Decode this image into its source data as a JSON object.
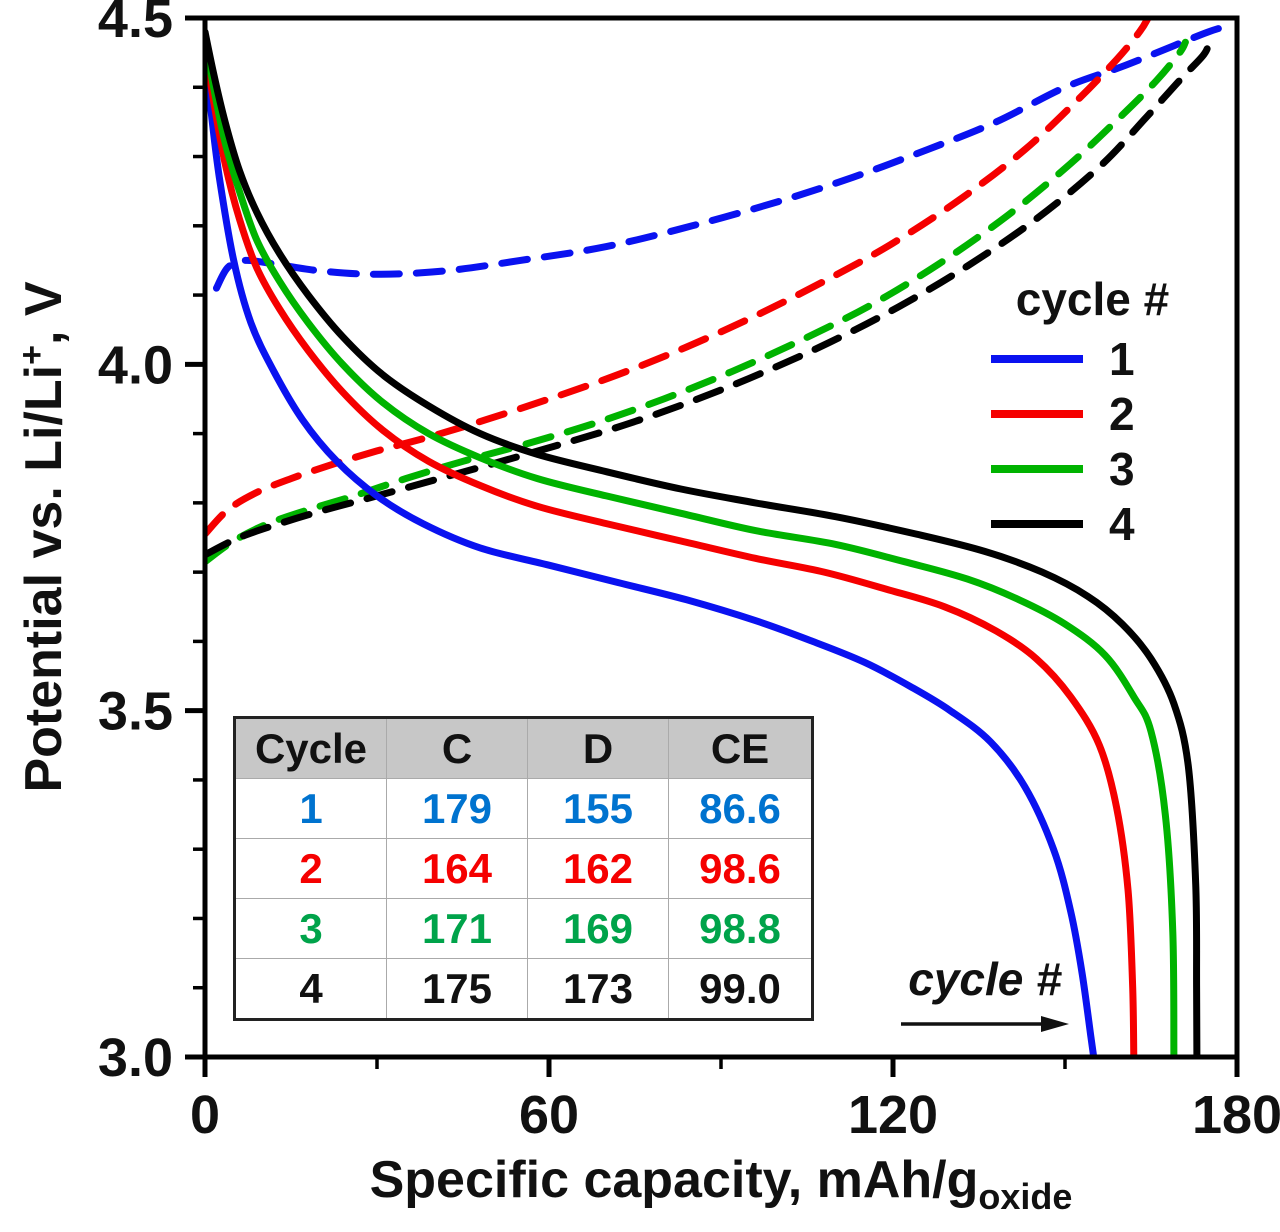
{
  "figure": {
    "background": "#ffffff"
  },
  "axis": {
    "x_label_main": "Specific capacity, mAh/g",
    "x_label_sub": "oxide",
    "y_label_main": "Potential vs. Li/Li",
    "y_label_sup": "+",
    "y_label_suffix": ", V"
  },
  "legend": {
    "title": "cycle #",
    "items": [
      {
        "label": "1",
        "color": "#0a12f0"
      },
      {
        "label": "2",
        "color": "#f50000"
      },
      {
        "label": "3",
        "color": "#00b300"
      },
      {
        "label": "4",
        "color": "#000000"
      }
    ]
  },
  "annotation": {
    "text": "cycle #"
  },
  "table": {
    "headers": [
      "Cycle",
      "C",
      "D",
      "CE"
    ],
    "rows": [
      {
        "cycle": "1",
        "c": "179",
        "d": "155",
        "ce": "86.6",
        "color": "#0073cf"
      },
      {
        "cycle": "2",
        "c": "164",
        "d": "162",
        "ce": "98.6",
        "color": "#f50000"
      },
      {
        "cycle": "3",
        "c": "171",
        "d": "169",
        "ce": "98.8",
        "color": "#00a34a"
      },
      {
        "cycle": "4",
        "c": "175",
        "d": "173",
        "ce": "99.0",
        "color": "#111111"
      }
    ]
  },
  "chart_data": {
    "type": "line",
    "title": "",
    "xlabel": "Specific capacity, mAh/g_oxide",
    "ylabel": "Potential vs. Li/Li+, V",
    "xlim": [
      0,
      180
    ],
    "ylim": [
      3.0,
      4.5
    ],
    "x_ticks": [
      0,
      60,
      120,
      180
    ],
    "x_minor_ticks": [
      30,
      90,
      150
    ],
    "y_ticks": [
      3.0,
      3.5,
      4.0,
      4.5
    ],
    "y_tick_labels": [
      "3.0",
      "3.5",
      "4.0",
      "4.5"
    ],
    "y_minor_step": 0.1,
    "legend_position": "upper right inside",
    "grid": false,
    "series": [
      {
        "name": "cycle 1 charge",
        "cycle": 1,
        "segment": "charge",
        "line": "dashed",
        "color": "#0a12f0",
        "points": [
          [
            2,
            4.11
          ],
          [
            4,
            4.14
          ],
          [
            7,
            4.15
          ],
          [
            12,
            4.145
          ],
          [
            20,
            4.135
          ],
          [
            30,
            4.13
          ],
          [
            42,
            4.135
          ],
          [
            55,
            4.15
          ],
          [
            70,
            4.17
          ],
          [
            85,
            4.2
          ],
          [
            100,
            4.235
          ],
          [
            113,
            4.27
          ],
          [
            126,
            4.31
          ],
          [
            138,
            4.35
          ],
          [
            150,
            4.4
          ],
          [
            160,
            4.43
          ],
          [
            169,
            4.46
          ],
          [
            175,
            4.48
          ],
          [
            179,
            4.49
          ]
        ]
      },
      {
        "name": "cycle 2 charge",
        "cycle": 2,
        "segment": "charge",
        "line": "dashed",
        "color": "#f50000",
        "points": [
          [
            0,
            3.755
          ],
          [
            4,
            3.79
          ],
          [
            9,
            3.815
          ],
          [
            15,
            3.835
          ],
          [
            22,
            3.855
          ],
          [
            30,
            3.875
          ],
          [
            39,
            3.895
          ],
          [
            49,
            3.92
          ],
          [
            60,
            3.95
          ],
          [
            72,
            3.985
          ],
          [
            84,
            4.025
          ],
          [
            96,
            4.07
          ],
          [
            108,
            4.12
          ],
          [
            120,
            4.175
          ],
          [
            132,
            4.24
          ],
          [
            143,
            4.31
          ],
          [
            152,
            4.38
          ],
          [
            159,
            4.44
          ],
          [
            163,
            4.48
          ],
          [
            164.5,
            4.5
          ]
        ]
      },
      {
        "name": "cycle 3 charge",
        "cycle": 3,
        "segment": "charge",
        "line": "dashed",
        "color": "#00b300",
        "points": [
          [
            0,
            3.715
          ],
          [
            5,
            3.745
          ],
          [
            11,
            3.77
          ],
          [
            18,
            3.79
          ],
          [
            26,
            3.81
          ],
          [
            35,
            3.835
          ],
          [
            45,
            3.86
          ],
          [
            56,
            3.885
          ],
          [
            68,
            3.915
          ],
          [
            80,
            3.95
          ],
          [
            92,
            3.99
          ],
          [
            104,
            4.035
          ],
          [
            116,
            4.085
          ],
          [
            128,
            4.145
          ],
          [
            140,
            4.215
          ],
          [
            151,
            4.29
          ],
          [
            160,
            4.36
          ],
          [
            166,
            4.41
          ],
          [
            170,
            4.45
          ],
          [
            171,
            4.465
          ]
        ]
      },
      {
        "name": "cycle 4 charge",
        "cycle": 4,
        "segment": "charge",
        "line": "dashed",
        "color": "#000000",
        "points": [
          [
            0,
            3.725
          ],
          [
            6,
            3.75
          ],
          [
            13,
            3.77
          ],
          [
            21,
            3.79
          ],
          [
            30,
            3.81
          ],
          [
            40,
            3.833
          ],
          [
            50,
            3.856
          ],
          [
            61,
            3.882
          ],
          [
            73,
            3.912
          ],
          [
            85,
            3.947
          ],
          [
            97,
            3.987
          ],
          [
            109,
            4.032
          ],
          [
            121,
            4.083
          ],
          [
            133,
            4.142
          ],
          [
            145,
            4.21
          ],
          [
            156,
            4.285
          ],
          [
            164,
            4.355
          ],
          [
            170,
            4.41
          ],
          [
            174,
            4.445
          ],
          [
            175,
            4.46
          ]
        ]
      },
      {
        "name": "cycle 1 discharge",
        "cycle": 1,
        "segment": "discharge",
        "line": "solid",
        "color": "#0a12f0",
        "points": [
          [
            0,
            4.45
          ],
          [
            1,
            4.37
          ],
          [
            2.5,
            4.27
          ],
          [
            5,
            4.15
          ],
          [
            8,
            4.06
          ],
          [
            12,
            3.99
          ],
          [
            17,
            3.92
          ],
          [
            23,
            3.86
          ],
          [
            30,
            3.81
          ],
          [
            38,
            3.77
          ],
          [
            48,
            3.735
          ],
          [
            60,
            3.71
          ],
          [
            72,
            3.685
          ],
          [
            84,
            3.66
          ],
          [
            96,
            3.63
          ],
          [
            106,
            3.6
          ],
          [
            115,
            3.57
          ],
          [
            123,
            3.535
          ],
          [
            130,
            3.5
          ],
          [
            137,
            3.455
          ],
          [
            143,
            3.39
          ],
          [
            148,
            3.3
          ],
          [
            151,
            3.21
          ],
          [
            153,
            3.12
          ],
          [
            154.5,
            3.03
          ],
          [
            155,
            3.0
          ]
        ]
      },
      {
        "name": "cycle 2 discharge",
        "cycle": 2,
        "segment": "discharge",
        "line": "solid",
        "color": "#f50000",
        "points": [
          [
            0,
            4.46
          ],
          [
            1.5,
            4.38
          ],
          [
            3.5,
            4.29
          ],
          [
            6,
            4.21
          ],
          [
            9,
            4.14
          ],
          [
            13,
            4.08
          ],
          [
            18,
            4.02
          ],
          [
            24,
            3.96
          ],
          [
            31,
            3.905
          ],
          [
            39,
            3.86
          ],
          [
            48,
            3.825
          ],
          [
            58,
            3.795
          ],
          [
            70,
            3.77
          ],
          [
            83,
            3.745
          ],
          [
            96,
            3.72
          ],
          [
            108,
            3.7
          ],
          [
            119,
            3.675
          ],
          [
            129,
            3.65
          ],
          [
            138,
            3.615
          ],
          [
            145,
            3.575
          ],
          [
            151,
            3.52
          ],
          [
            156,
            3.45
          ],
          [
            159,
            3.36
          ],
          [
            161,
            3.24
          ],
          [
            161.8,
            3.1
          ],
          [
            162,
            3.0
          ]
        ]
      },
      {
        "name": "cycle 3 discharge",
        "cycle": 3,
        "segment": "discharge",
        "line": "solid",
        "color": "#00b300",
        "points": [
          [
            0,
            4.47
          ],
          [
            1.5,
            4.4
          ],
          [
            3.5,
            4.32
          ],
          [
            6,
            4.25
          ],
          [
            9,
            4.18
          ],
          [
            13,
            4.12
          ],
          [
            18,
            4.06
          ],
          [
            24,
            4.0
          ],
          [
            31,
            3.945
          ],
          [
            39,
            3.9
          ],
          [
            48,
            3.865
          ],
          [
            58,
            3.835
          ],
          [
            70,
            3.81
          ],
          [
            83,
            3.785
          ],
          [
            96,
            3.76
          ],
          [
            110,
            3.74
          ],
          [
            122,
            3.715
          ],
          [
            133,
            3.69
          ],
          [
            142,
            3.66
          ],
          [
            150,
            3.625
          ],
          [
            157,
            3.58
          ],
          [
            162,
            3.52
          ],
          [
            165,
            3.47
          ],
          [
            167.5,
            3.35
          ],
          [
            168.8,
            3.18
          ],
          [
            169,
            3.0
          ]
        ]
      },
      {
        "name": "cycle 4 discharge",
        "cycle": 4,
        "segment": "discharge",
        "line": "solid",
        "color": "#000000",
        "points": [
          [
            0,
            4.48
          ],
          [
            1.5,
            4.42
          ],
          [
            3.5,
            4.35
          ],
          [
            6,
            4.28
          ],
          [
            9,
            4.22
          ],
          [
            13,
            4.16
          ],
          [
            18,
            4.1
          ],
          [
            24,
            4.04
          ],
          [
            31,
            3.985
          ],
          [
            39,
            3.94
          ],
          [
            48,
            3.9
          ],
          [
            58,
            3.87
          ],
          [
            70,
            3.845
          ],
          [
            83,
            3.82
          ],
          [
            96,
            3.8
          ],
          [
            110,
            3.78
          ],
          [
            124,
            3.755
          ],
          [
            136,
            3.73
          ],
          [
            146,
            3.7
          ],
          [
            154,
            3.665
          ],
          [
            160,
            3.625
          ],
          [
            165,
            3.575
          ],
          [
            169,
            3.51
          ],
          [
            171.5,
            3.42
          ],
          [
            172.8,
            3.25
          ],
          [
            172.95,
            3.1
          ],
          [
            173,
            3.0
          ]
        ]
      }
    ]
  }
}
